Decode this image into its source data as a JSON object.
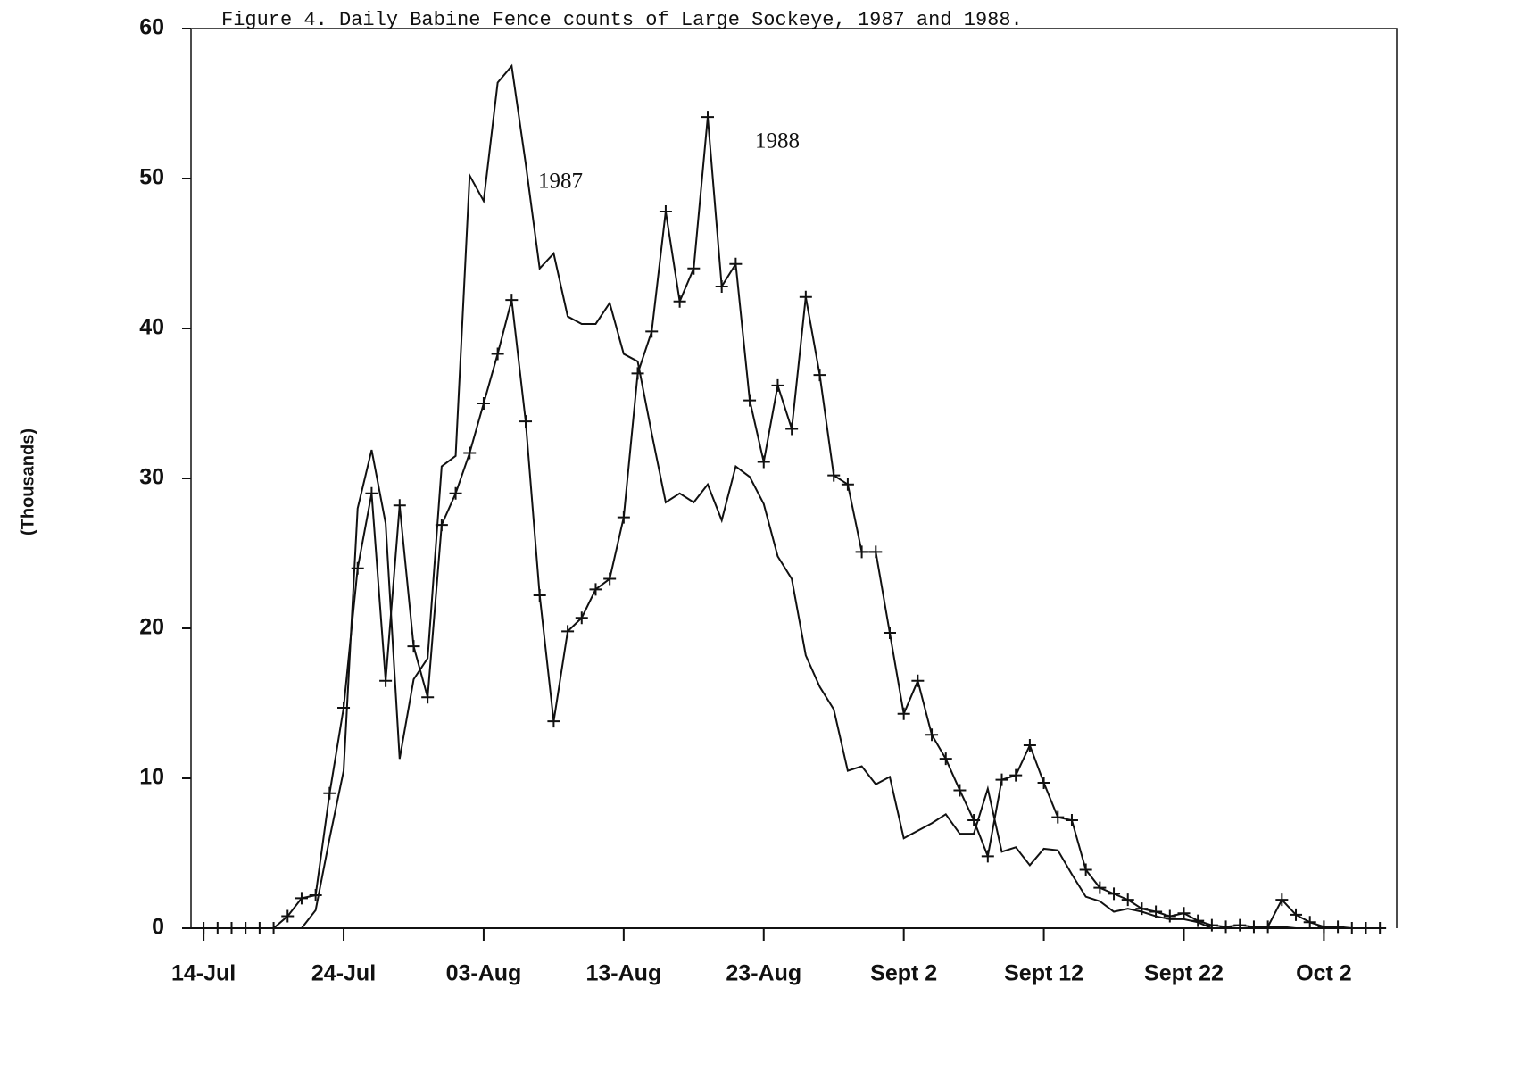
{
  "chart_data": {
    "type": "line",
    "title": "Figure 4. Daily Babine Fence counts of Large Sockeye, 1987 and 1988.",
    "y_label": "(Thousands)",
    "x": [
      0,
      1,
      2,
      3,
      4,
      5,
      6,
      7,
      8,
      9,
      10,
      11,
      12,
      13,
      14,
      15,
      16,
      17,
      18,
      19,
      20,
      21,
      22,
      23,
      24,
      25,
      26,
      27,
      28,
      29,
      30,
      31,
      32,
      33,
      34,
      35,
      36,
      37,
      38,
      39,
      40,
      41,
      42,
      43,
      44,
      45,
      46,
      47,
      48,
      49,
      50,
      51,
      52,
      53,
      54,
      55,
      56,
      57,
      58,
      59,
      60,
      61,
      62,
      63,
      64,
      65,
      66,
      67,
      68,
      69,
      70,
      71,
      72,
      73,
      74,
      75,
      76,
      77,
      78,
      79,
      80,
      81,
      82,
      83,
      84
    ],
    "xlim": [
      -0.9,
      85.2
    ],
    "xticks": [
      {
        "value": 0,
        "label": "14-Jul"
      },
      {
        "value": 10,
        "label": "24-Jul"
      },
      {
        "value": 20,
        "label": "03-Aug"
      },
      {
        "value": 30,
        "label": "13-Aug"
      },
      {
        "value": 40,
        "label": "23-Aug"
      },
      {
        "value": 50,
        "label": "Sept 2"
      },
      {
        "value": 60,
        "label": "Sept 12"
      },
      {
        "value": 70,
        "label": "Sept 22"
      },
      {
        "value": 80,
        "label": "Oct  2"
      }
    ],
    "ylim": [
      0,
      60
    ],
    "yticks": [
      0,
      10,
      20,
      30,
      40,
      50,
      60
    ],
    "series": [
      {
        "name": "1987",
        "color": "#111111",
        "marker": "none",
        "values": [
          null,
          null,
          null,
          null,
          null,
          null,
          null,
          0,
          1.2,
          6,
          10.5,
          28,
          31.9,
          27,
          11.3,
          16.6,
          18,
          30.8,
          31.5,
          50.2,
          48.5,
          56.4,
          57.5,
          51,
          44,
          45,
          40.8,
          40.3,
          40.3,
          41.7,
          38.3,
          37.8,
          33,
          28.4,
          29,
          28.4,
          29.6,
          27.2,
          30.8,
          30.1,
          28.3,
          24.8,
          23.3,
          18.2,
          16.1,
          14.6,
          10.5,
          10.8,
          9.6,
          10.1,
          6,
          6.5,
          7,
          7.6,
          6.3,
          6.3,
          9.3,
          5.1,
          5.4,
          4.2,
          5.3,
          5.2,
          3.6,
          2.1,
          1.8,
          1.1,
          1.3,
          1.1,
          0.8,
          0.6,
          0.6,
          0.4,
          0,
          0,
          0,
          0,
          0.1,
          0.1,
          0,
          0,
          0,
          null,
          null,
          null,
          null
        ]
      },
      {
        "name": "1988",
        "color": "#111111",
        "marker": "plus",
        "values": [
          0,
          0,
          0,
          0,
          0,
          0,
          0.8,
          2,
          2.2,
          9,
          14.7,
          24,
          29,
          16.5,
          28.2,
          18.8,
          15.4,
          26.9,
          29,
          31.7,
          35,
          38.3,
          41.9,
          33.8,
          22.2,
          13.8,
          19.8,
          20.7,
          22.6,
          23.3,
          27.4,
          37,
          39.8,
          47.8,
          41.8,
          44,
          54.1,
          42.8,
          44.3,
          35.2,
          31.1,
          36.2,
          33.3,
          42.1,
          36.9,
          30.2,
          29.6,
          25.1,
          25.1,
          19.7,
          14.3,
          16.5,
          12.9,
          11.3,
          9.2,
          7.2,
          4.8,
          9.9,
          10.2,
          12.2,
          9.7,
          7.4,
          7.2,
          3.9,
          2.7,
          2.3,
          1.9,
          1.3,
          1.1,
          0.8,
          1.0,
          0.5,
          0.2,
          0.1,
          0.2,
          0.1,
          0.1,
          1.9,
          0.9,
          0.4,
          0.1,
          0.1,
          0,
          0,
          0
        ]
      }
    ],
    "grid": false
  }
}
